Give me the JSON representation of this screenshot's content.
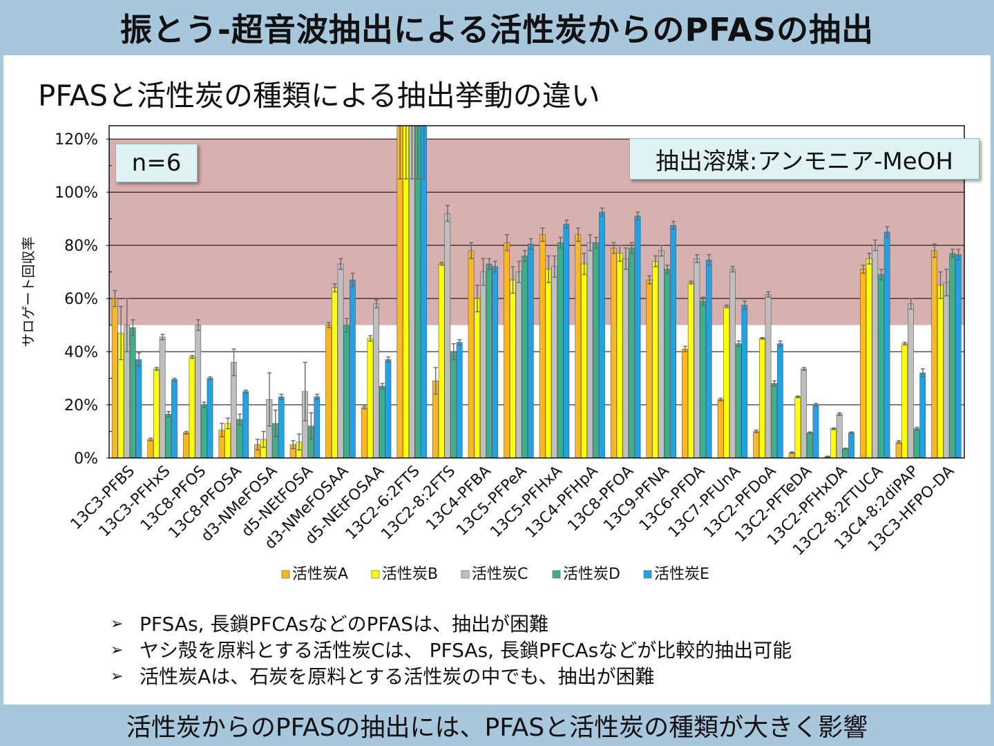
{
  "header": {
    "title": "振とう-超音波抽出による活性炭からのPFASの抽出"
  },
  "subtitle": "PFASと活性炭の種類による抽出挙動の違い",
  "badges": {
    "n": "n=6",
    "solvent": "抽出溶媒:アンモニア-MeOH"
  },
  "bullets": [
    "PFSAs, 長鎖PFCAsなどのPFASは、抽出が困難",
    "ヤシ殻を原料とする活性炭Cは、 PFSAs, 長鎖PFCAsなどが比較的抽出可能",
    "活性炭Aは、石炭を原料とする活性炭の中でも、抽出が困難"
  ],
  "bullet_marker": "➢",
  "footer": "活性炭からのPFASの抽出には、PFASと活性炭の種類が大きく影響",
  "chart_data": {
    "type": "bar",
    "ylabel": "サロゲート回収率",
    "ylim": [
      0,
      125
    ],
    "yticks": [
      0,
      20,
      40,
      60,
      80,
      100,
      120
    ],
    "ytick_labels": [
      "0%",
      "20%",
      "40%",
      "60%",
      "80%",
      "100%",
      "120%"
    ],
    "highlight_band": [
      50,
      120
    ],
    "highlight_color": "#d8b0b0",
    "categories": [
      "13C3-PFBS",
      "13C3-PFHxS",
      "13C8-PFOS",
      "13C8-PFOSA",
      "d3-NMeFOSA",
      "d5-NEtFOSA",
      "d3-NMeFOSAA",
      "d5-NEtFOSAA",
      "13C2-6:2FTS",
      "13C2-8:2FTS",
      "13C4-PFBA",
      "13C5-PFPeA",
      "13C5-PFHxA",
      "13C4-PFHpA",
      "13C8-PFOA",
      "13C9-PFNA",
      "13C6-PFDA",
      "13C7-PFUnA",
      "13C2-PFDoA",
      "13C2-PFTeDA",
      "13C2-PFHxDA",
      "13C2-8:2FTUCA",
      "13C4-8:2diPAP",
      "13C3-HFPO-DA"
    ],
    "legend_position": "bottom",
    "series": [
      {
        "name": "活性炭A",
        "color": "#ffb81c",
        "values": [
          60,
          7,
          9.5,
          10.5,
          5,
          5,
          50,
          19,
          130,
          29,
          78,
          81,
          84,
          84,
          79,
          67,
          41,
          22,
          10,
          2,
          0.5,
          71,
          6,
          78
        ],
        "errors": [
          3,
          0.5,
          0.5,
          2.5,
          2,
          1.5,
          1,
          0.5,
          25,
          5,
          3,
          3,
          2.5,
          2.5,
          2,
          1.5,
          1,
          0.5,
          0.5,
          0.3,
          0.2,
          1.5,
          0.5,
          2.5
        ]
      },
      {
        "name": "活性炭B",
        "color": "#ffff00",
        "values": [
          47,
          33.5,
          38,
          13,
          7,
          6,
          64,
          45,
          130,
          73,
          60,
          67,
          71,
          73,
          77,
          74,
          66,
          57,
          45,
          23,
          11,
          75,
          43,
          65
        ],
        "errors": [
          10,
          0.5,
          0.5,
          2,
          3,
          3,
          1.5,
          1,
          25,
          0.5,
          5,
          5,
          5,
          4,
          3,
          2,
          0.5,
          0.5,
          0.3,
          0.3,
          0.3,
          2,
          0.5,
          5
        ]
      },
      {
        "name": "活性炭C",
        "color": "#bfbfbf",
        "values": [
          50,
          45.5,
          50,
          36,
          22,
          25,
          73,
          58,
          130,
          92,
          70,
          70,
          72,
          81,
          75,
          78,
          75,
          71,
          61.5,
          33.5,
          16.5,
          80,
          58,
          66
        ],
        "errors": [
          10,
          1,
          2,
          5,
          10,
          11,
          2,
          1.5,
          25,
          3,
          5,
          4,
          4,
          3,
          4,
          2,
          1.5,
          1,
          1,
          0.5,
          0.5,
          2,
          2,
          5
        ]
      },
      {
        "name": "活性炭D",
        "color": "#3cb08a",
        "values": [
          49,
          16.5,
          20,
          14.5,
          13,
          12,
          50,
          27,
          130,
          40,
          73,
          76,
          81,
          81,
          79,
          71,
          59,
          43,
          28,
          9.5,
          3.5,
          69,
          11,
          77
        ],
        "errors": [
          3,
          1,
          1,
          2,
          5,
          5,
          2.5,
          1,
          25,
          3,
          2,
          2,
          2,
          2,
          2,
          1.5,
          1.5,
          1,
          1,
          0.3,
          0.2,
          2,
          0.5,
          1.5
        ]
      },
      {
        "name": "活性炭E",
        "color": "#1fa2e6",
        "values": [
          37,
          29.5,
          30,
          25,
          23,
          23,
          67,
          37,
          130,
          43.5,
          72,
          80.5,
          88,
          92.5,
          91,
          87.5,
          74.5,
          57.5,
          43,
          20,
          9.5,
          85,
          32,
          76.5
        ],
        "errors": [
          2.5,
          0.5,
          0.5,
          0.5,
          1,
          1,
          2.5,
          1,
          25,
          1,
          2,
          2,
          1.5,
          1.5,
          1.5,
          1.5,
          2,
          1.5,
          1,
          0.5,
          0.3,
          2,
          1.5,
          2
        ]
      }
    ]
  }
}
